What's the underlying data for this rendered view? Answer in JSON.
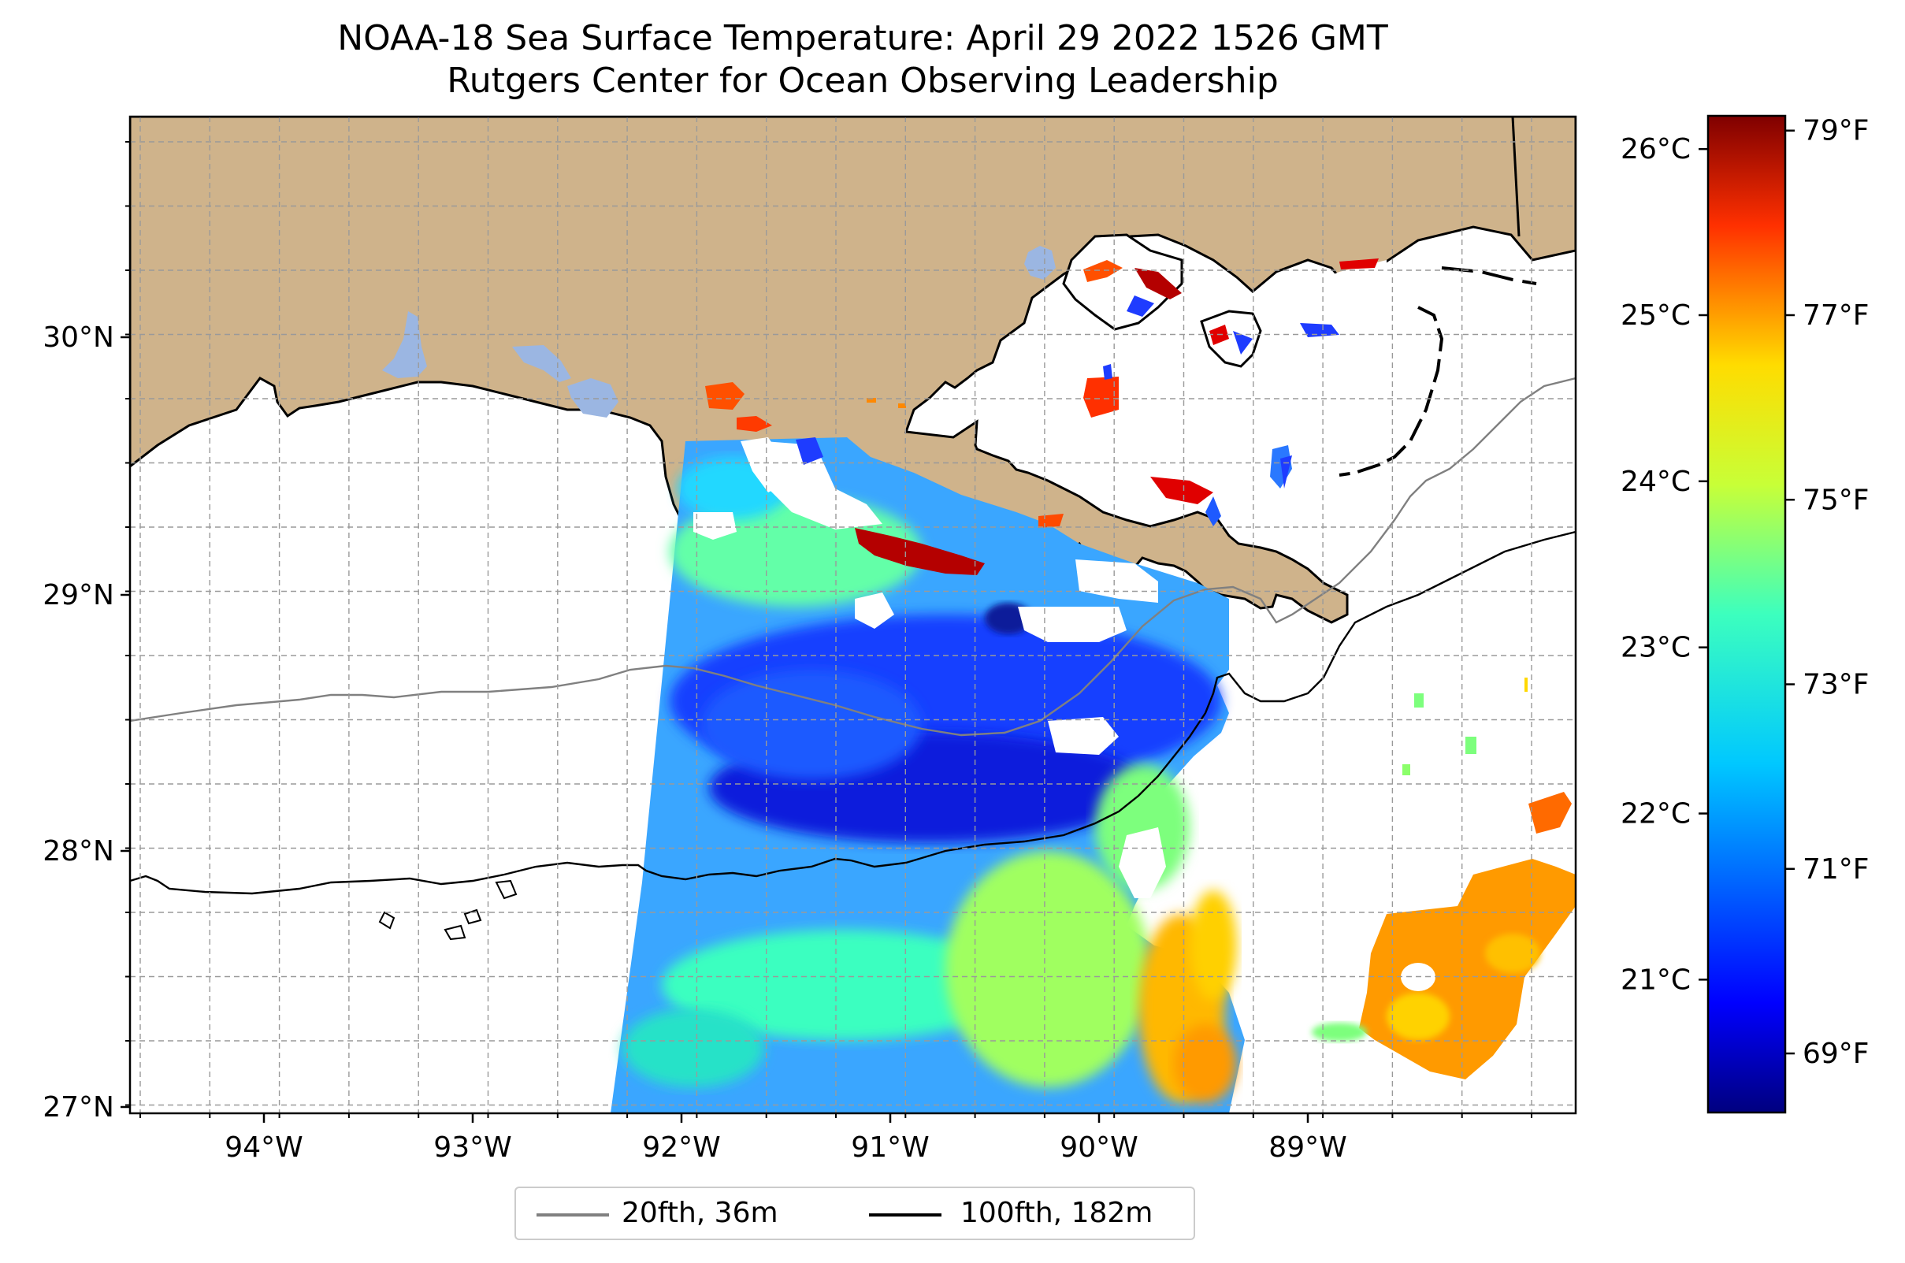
{
  "title": "NOAA-18 Sea Surface Temperature: April 29 2022 1526 GMT",
  "subtitle": "Rutgers Center for Ocean Observing Leadership",
  "map": {
    "lon_ticks": [
      "94°W",
      "93°W",
      "92°W",
      "91°W",
      "90°W",
      "89°W"
    ],
    "lat_ticks": [
      "30°N",
      "29°N",
      "28°N",
      "27°N"
    ],
    "colors": {
      "land": "#cfb38b",
      "lakes": "#9bb6e2",
      "ocean_no_data": "#ffffff",
      "coastline": "#000000",
      "gridlines": "#9a9a9a"
    }
  },
  "colorbar": {
    "celsius_ticks": [
      "26°C",
      "25°C",
      "24°C",
      "23°C",
      "22°C",
      "21°C"
    ],
    "fahrenheit_ticks": [
      "79°F",
      "77°F",
      "75°F",
      "73°F",
      "71°F",
      "69°F"
    ],
    "colormap": "jet",
    "range_celsius": [
      20.2,
      26.2
    ]
  },
  "legend": {
    "items": [
      {
        "label": "20fth, 36m",
        "color": "#808080"
      },
      {
        "label": "100fth, 182m",
        "color": "#000000"
      }
    ]
  }
}
